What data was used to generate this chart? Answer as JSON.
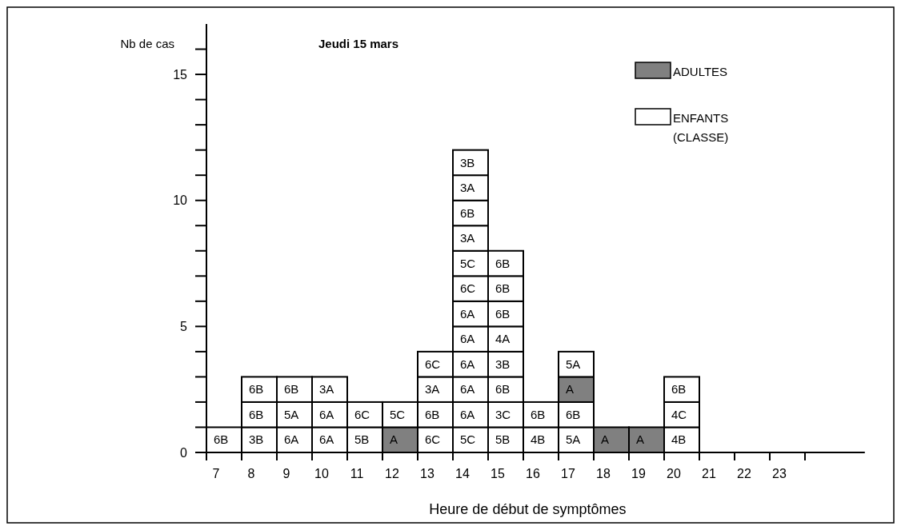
{
  "chart_data": {
    "type": "bar",
    "stacked": true,
    "title": "Jeudi 15 mars",
    "ylabel": "Nb de cas",
    "xlabel": "Heure de début de symptômes",
    "legend": "top right",
    "categories": [
      "7",
      "8",
      "9",
      "10",
      "11",
      "12",
      "13",
      "14",
      "15",
      "16",
      "17",
      "18",
      "19",
      "20",
      "21",
      "22",
      "23"
    ],
    "ylim": [
      0,
      17
    ],
    "yticks": [
      0,
      {
        "value": 1,
        "label": null
      },
      {
        "value": 2,
        "label": null
      },
      {
        "value": 3,
        "label": null
      },
      {
        "value": 4,
        "label": null
      },
      5,
      {
        "value": 6,
        "label": null
      },
      {
        "value": 7,
        "label": null
      },
      {
        "value": 8,
        "label": null
      },
      {
        "value": 9,
        "label": null
      },
      10,
      {
        "value": 11,
        "label": null
      },
      {
        "value": 12,
        "label": null
      },
      {
        "value": 13,
        "label": null
      },
      {
        "value": 14,
        "label": null
      },
      15,
      {
        "value": 16,
        "label": null
      }
    ],
    "series": [
      {
        "name": "ENFANTS (CLASSE)",
        "color": "#ffffff",
        "values": [
          1,
          1,
          1,
          1,
          1,
          null,
          1,
          1,
          1,
          1,
          1,
          null,
          null,
          1,
          null,
          null,
          null
        ]
      },
      {
        "color": "#ffffff",
        "values": [
          null,
          1,
          1,
          1,
          1,
          null,
          1,
          1,
          1,
          1,
          1,
          null,
          null,
          1,
          null,
          null,
          null
        ]
      },
      {
        "name": "ADULTES",
        "color": "#808080",
        "values": [
          null,
          null,
          null,
          null,
          null,
          1,
          null,
          null,
          null,
          null,
          1,
          1,
          1,
          null,
          null,
          null,
          null
        ]
      },
      {
        "color": "#ffffff",
        "values": [
          null,
          1,
          1,
          1,
          null,
          1,
          1,
          1,
          1,
          null,
          1,
          null,
          null,
          1,
          null,
          null,
          null
        ]
      },
      {
        "color": "#ffffff",
        "values": [
          null,
          null,
          null,
          null,
          null,
          null,
          1,
          1,
          1,
          null,
          null,
          null,
          null,
          null,
          null,
          null,
          null
        ]
      },
      {
        "color": "#ffffff",
        "values": [
          null,
          null,
          null,
          null,
          null,
          null,
          null,
          1,
          1,
          null,
          null,
          null,
          null,
          null,
          null,
          null,
          null
        ]
      },
      {
        "color": "#ffffff",
        "values": [
          null,
          null,
          null,
          null,
          null,
          null,
          null,
          1,
          1,
          null,
          null,
          null,
          null,
          null,
          null,
          null,
          null
        ]
      },
      {
        "color": "#ffffff",
        "values": [
          null,
          null,
          null,
          null,
          null,
          null,
          null,
          1,
          1,
          null,
          null,
          null,
          null,
          null,
          null,
          null,
          null
        ]
      },
      {
        "color": "#ffffff",
        "values": [
          null,
          null,
          null,
          null,
          null,
          null,
          null,
          1,
          1,
          null,
          null,
          null,
          null,
          null,
          null,
          null,
          null
        ]
      },
      {
        "color": "#ffffff",
        "values": [
          null,
          null,
          null,
          null,
          null,
          null,
          null,
          1,
          null,
          null,
          null,
          null,
          null,
          null,
          null,
          null,
          null
        ]
      },
      {
        "color": "#ffffff",
        "values": [
          null,
          null,
          null,
          null,
          null,
          null,
          null,
          1,
          null,
          null,
          null,
          null,
          null,
          null,
          null,
          null,
          null
        ]
      },
      {
        "color": "#ffffff",
        "values": [
          null,
          null,
          null,
          null,
          null,
          null,
          null,
          1,
          null,
          null,
          null,
          null,
          null,
          null,
          null,
          null,
          null
        ]
      },
      {
        "color": "#ffffff",
        "values": [
          null,
          null,
          null,
          null,
          null,
          null,
          null,
          1,
          null,
          null,
          null,
          null,
          null,
          null,
          null,
          null,
          null
        ]
      }
    ],
    "annotations": [
      {
        "text": "6B",
        "x": "7",
        "y": 1
      },
      {
        "text": "3B",
        "x": "8",
        "y": 1
      },
      {
        "text": "6B",
        "x": "8",
        "y": 2
      },
      {
        "text": "6B",
        "x": "8",
        "y": 3
      },
      {
        "text": "6A",
        "x": "9",
        "y": 1
      },
      {
        "text": "5A",
        "x": "9",
        "y": 2
      },
      {
        "text": "6B",
        "x": "9",
        "y": 3
      },
      {
        "text": "6A",
        "x": "10",
        "y": 1
      },
      {
        "text": "6A",
        "x": "10",
        "y": 2
      },
      {
        "text": "3A",
        "x": "10",
        "y": 3
      },
      {
        "text": "5B",
        "x": "11",
        "y": 1
      },
      {
        "text": "6C",
        "x": "11",
        "y": 2
      },
      {
        "text": "A",
        "x": "12",
        "y": 1
      },
      {
        "text": "5C",
        "x": "12",
        "y": 2
      },
      {
        "text": "6C",
        "x": "13",
        "y": 1
      },
      {
        "text": "6B",
        "x": "13",
        "y": 2
      },
      {
        "text": "3A",
        "x": "13",
        "y": 3
      },
      {
        "text": "6C",
        "x": "13",
        "y": 4
      },
      {
        "text": "5C",
        "x": "14",
        "y": 1
      },
      {
        "text": "6A",
        "x": "14",
        "y": 2
      },
      {
        "text": "6A",
        "x": "14",
        "y": 3
      },
      {
        "text": "6A",
        "x": "14",
        "y": 4
      },
      {
        "text": "6A",
        "x": "14",
        "y": 5
      },
      {
        "text": "6A",
        "x": "14",
        "y": 6
      },
      {
        "text": "6C",
        "x": "14",
        "y": 7
      },
      {
        "text": "5C",
        "x": "14",
        "y": 8
      },
      {
        "text": "3A",
        "x": "14",
        "y": 9
      },
      {
        "text": "6B",
        "x": "14",
        "y": 10
      },
      {
        "text": "3A",
        "x": "14",
        "y": 11
      },
      {
        "text": "3B",
        "x": "14",
        "y": 12
      },
      {
        "text": "5B",
        "x": "15",
        "y": 1
      },
      {
        "text": "3C",
        "x": "15",
        "y": 2
      },
      {
        "text": "6B",
        "x": "15",
        "y": 3
      },
      {
        "text": "3B",
        "x": "15",
        "y": 4
      },
      {
        "text": "4A",
        "x": "15",
        "y": 5
      },
      {
        "text": "6B",
        "x": "15",
        "y": 6
      },
      {
        "text": "6B",
        "x": "15",
        "y": 7
      },
      {
        "text": "6B",
        "x": "15",
        "y": 8
      },
      {
        "text": "4B",
        "x": "16",
        "y": 1
      },
      {
        "text": "6B",
        "x": "16",
        "y": 2
      },
      {
        "text": "5A",
        "x": "17",
        "y": 1
      },
      {
        "text": "6B",
        "x": "17",
        "y": 2
      },
      {
        "text": "A",
        "x": "17",
        "y": 3
      },
      {
        "text": "5A",
        "x": "17",
        "y": 4
      },
      {
        "text": "A",
        "x": "18",
        "y": 1
      },
      {
        "text": "A",
        "x": "19",
        "y": 1
      },
      {
        "text": "4B",
        "x": "20",
        "y": 1
      },
      {
        "text": "4C",
        "x": "20",
        "y": 2
      },
      {
        "text": "6B",
        "x": "20",
        "y": 3
      }
    ]
  }
}
